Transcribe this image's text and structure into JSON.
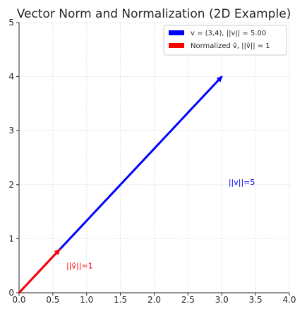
{
  "chart_data": {
    "type": "line",
    "title": "Vector Norm and Normalization (2D Example)",
    "xlabel": "",
    "ylabel": "",
    "xlim": [
      0,
      4
    ],
    "ylim": [
      0,
      5
    ],
    "x_ticks": [
      "0.0",
      "0.5",
      "1.0",
      "1.5",
      "2.0",
      "2.5",
      "3.0",
      "3.5",
      "4.0"
    ],
    "y_ticks": [
      "0",
      "1",
      "2",
      "3",
      "4",
      "5"
    ],
    "grid": true,
    "legend_position": "top-right",
    "series": [
      {
        "name": "v = (3,4), ||v|| = 5.00",
        "color": "#0000ff",
        "start": [
          0,
          0
        ],
        "end": [
          3,
          4
        ]
      },
      {
        "name": "Normalized v̂, ||v̂|| = 1",
        "color": "#ff0000",
        "start": [
          0,
          0
        ],
        "end": [
          0.6,
          0.8
        ]
      }
    ],
    "annotations": [
      {
        "text": "||v||=5",
        "x": 3.1,
        "y": 2.0,
        "color": "#0000ff"
      },
      {
        "text": "||v̂||=1",
        "x": 0.7,
        "y": 0.45,
        "color": "#ff0000"
      }
    ]
  }
}
